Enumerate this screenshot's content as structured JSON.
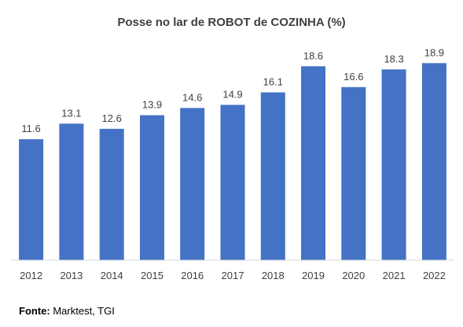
{
  "chart_data": {
    "type": "bar",
    "title": "Posse no lar de ROBOT de COZINHA (%)",
    "categories": [
      "2012",
      "2013",
      "2014",
      "2015",
      "2016",
      "2017",
      "2018",
      "2019",
      "2020",
      "2021",
      "2022"
    ],
    "values": [
      11.6,
      13.1,
      12.6,
      13.9,
      14.6,
      14.9,
      16.1,
      18.6,
      16.6,
      18.3,
      18.9
    ],
    "data_labels": [
      "11.6",
      "13.1",
      "12.6",
      "13.9",
      "14.6",
      "14.9",
      "16.1",
      "18.6",
      "16.6",
      "18.3",
      "18.9"
    ],
    "xlabel": "",
    "ylabel": "",
    "ylim": [
      0,
      19
    ],
    "grid": false,
    "bar_color": "#4472C4",
    "axis_color": "#D9D9D9"
  },
  "source": {
    "label": "Fonte:",
    "text": "Marktest, TGI"
  }
}
